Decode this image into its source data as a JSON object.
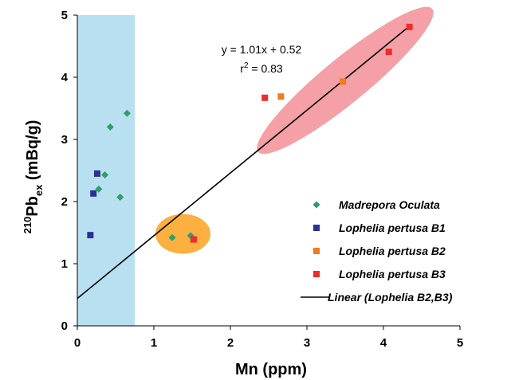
{
  "chart_data": {
    "type": "scatter",
    "xlabel": "Mn (ppm)",
    "ylabel_parts": {
      "superscript": "210",
      "base": "Pb",
      "subscript": "ex",
      "unit": " (mBq/g)"
    },
    "xlim": [
      0,
      5
    ],
    "ylim": [
      0,
      5
    ],
    "x_ticks": [
      "0",
      "1",
      "2",
      "3",
      "4",
      "5"
    ],
    "y_ticks": [
      "0",
      "1",
      "2",
      "3",
      "4",
      "5"
    ],
    "grid": false,
    "legend_position": "bottom-right",
    "series": [
      {
        "name": "Madrepora Oculata",
        "marker": "diamond",
        "color": "#2e9e6b",
        "points": [
          {
            "x": 0.28,
            "y": 2.2
          },
          {
            "x": 0.36,
            "y": 2.43
          },
          {
            "x": 0.43,
            "y": 3.2
          },
          {
            "x": 0.56,
            "y": 2.07
          },
          {
            "x": 0.65,
            "y": 3.42
          },
          {
            "x": 1.24,
            "y": 1.42
          },
          {
            "x": 1.48,
            "y": 1.45
          }
        ]
      },
      {
        "name": "Lophelia pertusa B1",
        "marker": "square",
        "color": "#2e3192",
        "points": [
          {
            "x": 0.17,
            "y": 1.46
          },
          {
            "x": 0.21,
            "y": 2.13
          },
          {
            "x": 0.26,
            "y": 2.45
          }
        ]
      },
      {
        "name": "Lophelia pertusa B2",
        "marker": "square",
        "color": "#f47a20",
        "points": [
          {
            "x": 2.66,
            "y": 3.69
          },
          {
            "x": 3.47,
            "y": 3.93
          }
        ]
      },
      {
        "name": "Lophelia pertusa B3",
        "marker": "square",
        "color": "#ee2c2c",
        "points": [
          {
            "x": 1.52,
            "y": 1.39
          },
          {
            "x": 2.45,
            "y": 3.67
          },
          {
            "x": 4.07,
            "y": 4.41
          },
          {
            "x": 4.34,
            "y": 4.81
          }
        ]
      }
    ],
    "trendline": {
      "name": "Linear (Lophelia B2,B3)",
      "color": "#000000",
      "slope": 1.01,
      "intercept": 0.52,
      "x_range": [
        0,
        4.33
      ],
      "equation": "y = 1.01x + 0.52",
      "r2_label": "r",
      "r2_sup": "2",
      "r2_value": " = 0.83"
    },
    "highlights": {
      "band": {
        "color": "#b8e0f0",
        "x_range": [
          0,
          0.75
        ]
      },
      "circle": {
        "color": "#fbb040",
        "cx": 1.38,
        "cy": 1.48,
        "rx": 0.36,
        "ry": 0.32
      },
      "ellipse": {
        "color": "#f4a0a6",
        "x_range": [
          2.6,
          4.4
        ],
        "center_y": 3.95
      }
    }
  }
}
